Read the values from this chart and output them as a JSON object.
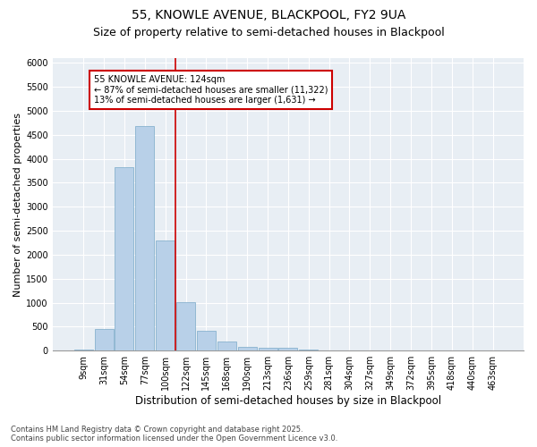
{
  "title1": "55, KNOWLE AVENUE, BLACKPOOL, FY2 9UA",
  "title2": "Size of property relative to semi-detached houses in Blackpool",
  "xlabel": "Distribution of semi-detached houses by size in Blackpool",
  "ylabel": "Number of semi-detached properties",
  "categories": [
    "9sqm",
    "31sqm",
    "54sqm",
    "77sqm",
    "100sqm",
    "122sqm",
    "145sqm",
    "168sqm",
    "190sqm",
    "213sqm",
    "236sqm",
    "259sqm",
    "281sqm",
    "304sqm",
    "327sqm",
    "349sqm",
    "372sqm",
    "395sqm",
    "418sqm",
    "440sqm",
    "463sqm"
  ],
  "bar_heights": [
    30,
    460,
    3820,
    4680,
    2300,
    1010,
    410,
    195,
    75,
    55,
    55,
    30,
    10,
    5,
    5,
    3,
    2,
    2,
    1,
    1,
    1
  ],
  "bar_color": "#b8d0e8",
  "bar_edge_color": "#7aaac8",
  "annotation_text": "55 KNOWLE AVENUE: 124sqm\n← 87% of semi-detached houses are smaller (11,322)\n13% of semi-detached houses are larger (1,631) →",
  "annotation_box_color": "#ffffff",
  "annotation_box_edge": "#cc0000",
  "vline_color": "#cc0000",
  "ylim": [
    0,
    6100
  ],
  "yticks": [
    0,
    500,
    1000,
    1500,
    2000,
    2500,
    3000,
    3500,
    4000,
    4500,
    5000,
    5500,
    6000
  ],
  "background_color": "#e8eef4",
  "grid_color": "#ffffff",
  "footnote": "Contains HM Land Registry data © Crown copyright and database right 2025.\nContains public sector information licensed under the Open Government Licence v3.0.",
  "title1_fontsize": 10,
  "title2_fontsize": 9,
  "xlabel_fontsize": 8.5,
  "ylabel_fontsize": 8,
  "tick_fontsize": 7,
  "annot_fontsize": 7,
  "footnote_fontsize": 6
}
